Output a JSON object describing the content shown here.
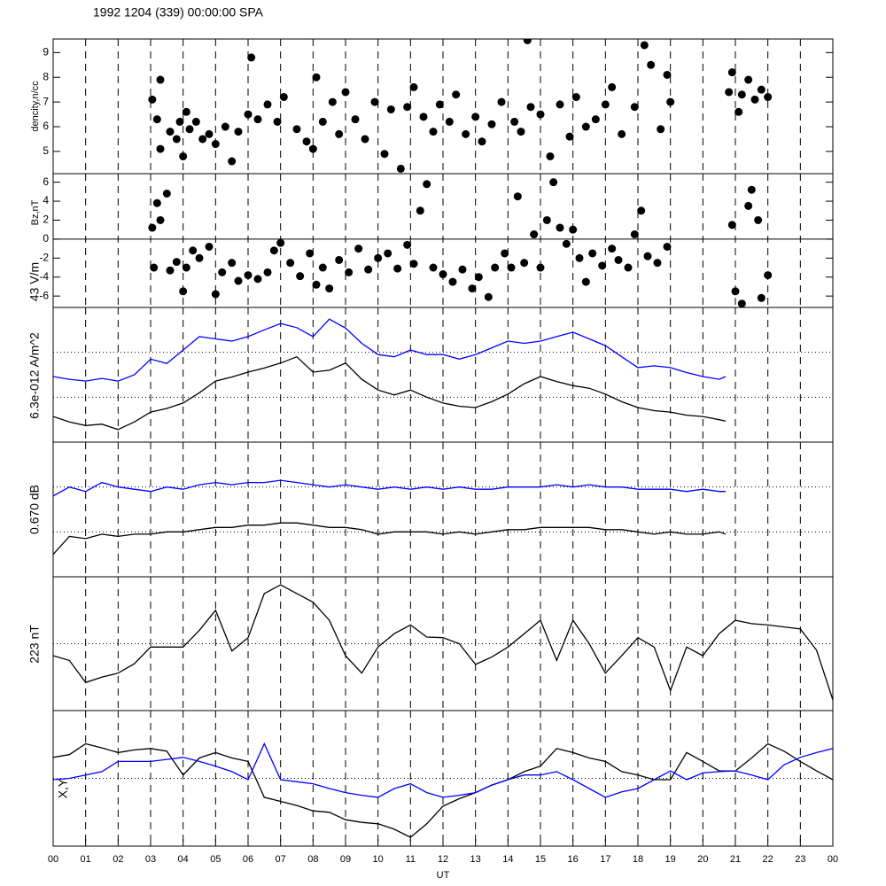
{
  "chart_data": [
    {
      "type": "scatter",
      "title": "1992 1204 (339) 00:00:00 SPA",
      "ylabel": "dencity,n/cc",
      "xlim": [
        0,
        24
      ],
      "ylim": [
        4.1,
        9.55
      ],
      "yticks": [
        5,
        6,
        7,
        8,
        9
      ],
      "tick_labels": true,
      "series": [
        {
          "color": "#000000",
          "x": [
            3.05,
            3.2,
            3.3,
            3.3,
            3.6,
            3.8,
            3.9,
            4.0,
            4.1,
            4.2,
            4.4,
            4.6,
            4.8,
            5.0,
            5.3,
            5.5,
            5.7,
            6.0,
            6.1,
            6.3,
            6.6,
            6.9,
            7.1,
            7.5,
            7.8,
            8.0,
            8.1,
            8.3,
            8.6,
            8.8,
            9.0,
            9.3,
            9.6,
            9.9,
            10.2,
            10.4,
            10.7,
            10.9,
            11.1,
            11.4,
            11.7,
            11.9,
            12.2,
            12.4,
            12.7,
            13.0,
            13.2,
            13.5,
            13.8,
            14.2,
            14.4,
            14.6,
            14.7,
            15.0,
            15.3,
            15.6,
            15.9,
            16.1,
            16.4,
            16.7,
            17.0,
            17.2,
            17.5,
            17.9,
            18.2,
            18.4,
            18.7,
            18.9,
            19.0,
            20.8,
            20.9,
            21.1,
            21.2,
            21.4,
            21.6,
            21.8,
            22.0
          ],
          "values": [
            7.1,
            6.3,
            7.9,
            5.1,
            5.8,
            5.5,
            6.2,
            4.8,
            6.6,
            5.9,
            6.2,
            5.5,
            5.7,
            5.3,
            6.0,
            4.6,
            5.8,
            6.5,
            8.8,
            6.3,
            6.9,
            6.2,
            7.2,
            5.9,
            5.4,
            5.1,
            8.0,
            6.2,
            7.0,
            5.7,
            7.4,
            6.3,
            5.5,
            7.0,
            4.9,
            6.7,
            4.3,
            6.8,
            7.6,
            6.4,
            5.8,
            6.9,
            6.2,
            7.3,
            5.7,
            6.4,
            5.4,
            6.1,
            7.0,
            6.2,
            5.8,
            9.5,
            6.8,
            6.5,
            4.8,
            6.9,
            5.6,
            7.2,
            6.0,
            6.3,
            6.9,
            7.6,
            5.7,
            6.8,
            9.3,
            8.5,
            5.9,
            8.1,
            7.0,
            7.4,
            8.2,
            6.6,
            7.3,
            7.9,
            7.1,
            7.5,
            7.2
          ]
        }
      ]
    },
    {
      "type": "scatter",
      "ylabel": "Bz,nT",
      "ylabel2": "43 V/m",
      "xlim": [
        0,
        24
      ],
      "ylim": [
        -7.2,
        6.9
      ],
      "yticks": [
        -6,
        -4,
        -2,
        0,
        2,
        4,
        6
      ],
      "tick_labels": true,
      "zero_line": true,
      "series": [
        {
          "color": "#000000",
          "x": [
            3.05,
            3.1,
            3.2,
            3.3,
            3.5,
            3.6,
            3.8,
            4.0,
            4.1,
            4.3,
            4.5,
            4.8,
            5.0,
            5.2,
            5.5,
            5.7,
            6.0,
            6.3,
            6.6,
            6.8,
            7.0,
            7.3,
            7.6,
            7.9,
            8.1,
            8.3,
            8.5,
            8.8,
            9.1,
            9.4,
            9.7,
            10.0,
            10.3,
            10.6,
            10.9,
            11.1,
            11.3,
            11.5,
            11.7,
            12.0,
            12.3,
            12.6,
            12.9,
            13.1,
            13.4,
            13.6,
            13.9,
            14.1,
            14.3,
            14.5,
            14.8,
            15.0,
            15.2,
            15.4,
            15.6,
            15.8,
            16.0,
            16.2,
            16.4,
            16.6,
            16.9,
            17.2,
            17.4,
            17.7,
            17.9,
            18.1,
            18.3,
            18.6,
            18.9,
            20.9,
            21.0,
            21.2,
            21.4,
            21.5,
            21.7,
            21.8,
            22.0
          ],
          "values": [
            1.2,
            -3.0,
            3.8,
            2.0,
            4.8,
            -3.3,
            -2.4,
            -5.5,
            -3.0,
            -1.2,
            -2.0,
            -0.8,
            -5.8,
            -3.5,
            -2.5,
            -4.4,
            -3.8,
            -4.2,
            -3.5,
            -1.2,
            -0.4,
            -2.5,
            -3.9,
            -1.5,
            -4.8,
            -3.0,
            -5.2,
            -2.2,
            -3.5,
            -1.0,
            -3.2,
            -2.0,
            -1.5,
            -3.1,
            -0.6,
            -2.6,
            3.0,
            5.8,
            -3.0,
            -3.7,
            -4.5,
            -3.2,
            -5.2,
            -4.0,
            -6.1,
            -3.0,
            -1.5,
            -3.0,
            4.5,
            -2.5,
            0.5,
            -3.0,
            2.0,
            6.0,
            1.2,
            -0.5,
            1.0,
            -2.0,
            -4.5,
            -1.5,
            -2.8,
            -1.0,
            -2.2,
            -3.0,
            0.5,
            3.0,
            -1.8,
            -2.5,
            -0.8,
            1.5,
            -5.5,
            -6.8,
            3.5,
            5.2,
            2.0,
            -6.2,
            -3.8
          ]
        }
      ]
    },
    {
      "type": "line",
      "ylabel": "6.3e-012 A/m^2",
      "xlim": [
        0,
        24
      ],
      "ylim": [
        0,
        3
      ],
      "yticks": [
        1,
        2
      ],
      "tick_labels": false,
      "grid": "dotted",
      "x": [
        0,
        0.5,
        1,
        1.5,
        2,
        2.5,
        3,
        3.5,
        4,
        4.5,
        5,
        5.5,
        6,
        6.5,
        7,
        7.5,
        8,
        8.5,
        9,
        9.5,
        10,
        10.5,
        11,
        11.5,
        12,
        12.5,
        13,
        13.5,
        14,
        14.5,
        15,
        15.5,
        16,
        16.5,
        17,
        17.5,
        18,
        18.5,
        19,
        19.5,
        20,
        20.5,
        20.7
      ],
      "series": [
        {
          "color": "#0000ff",
          "values": [
            1.46,
            1.4,
            1.36,
            1.42,
            1.36,
            1.5,
            1.85,
            1.75,
            2.05,
            2.35,
            2.3,
            2.25,
            2.35,
            2.5,
            2.64,
            2.55,
            2.35,
            2.74,
            2.54,
            2.2,
            1.95,
            1.9,
            2.05,
            1.95,
            1.95,
            1.85,
            1.95,
            2.1,
            2.25,
            2.2,
            2.25,
            2.35,
            2.45,
            2.3,
            2.15,
            1.9,
            1.66,
            1.7,
            1.66,
            1.55,
            1.46,
            1.4,
            1.46
          ]
        },
        {
          "color": "#000000",
          "values": [
            0.57,
            0.45,
            0.37,
            0.4,
            0.28,
            0.45,
            0.67,
            0.75,
            0.87,
            1.1,
            1.36,
            1.45,
            1.56,
            1.65,
            1.76,
            1.9,
            1.56,
            1.6,
            1.76,
            1.4,
            1.16,
            1.05,
            1.16,
            1.0,
            0.87,
            0.8,
            0.77,
            0.9,
            1.07,
            1.3,
            1.46,
            1.35,
            1.26,
            1.2,
            1.07,
            0.9,
            0.77,
            0.7,
            0.67,
            0.6,
            0.57,
            0.5,
            0.47
          ]
        }
      ]
    },
    {
      "type": "line",
      "ylabel": "0.670 dB",
      "xlim": [
        0,
        24
      ],
      "ylim": [
        0,
        3
      ],
      "yticks": [
        1,
        2
      ],
      "tick_labels": false,
      "grid": "dotted",
      "x": [
        0,
        0.5,
        1,
        1.5,
        2,
        2.5,
        3,
        3.5,
        4,
        4.5,
        5,
        5.5,
        6,
        6.5,
        7,
        7.5,
        8,
        8.5,
        9,
        9.5,
        10,
        10.5,
        11,
        11.5,
        12,
        12.5,
        13,
        13.5,
        14,
        14.5,
        15,
        15.5,
        16,
        16.5,
        17,
        17.5,
        18,
        18.5,
        19,
        19.5,
        20,
        20.5,
        20.7
      ],
      "series": [
        {
          "color": "#0000ff",
          "values": [
            1.8,
            2.0,
            1.9,
            2.1,
            2.0,
            1.95,
            1.9,
            2.0,
            1.95,
            2.05,
            2.1,
            2.05,
            2.1,
            2.1,
            2.15,
            2.1,
            2.05,
            2.0,
            2.05,
            2.0,
            1.95,
            2.0,
            1.95,
            2.0,
            1.95,
            2.0,
            1.95,
            1.95,
            2.0,
            2.0,
            2.0,
            2.05,
            2.0,
            2.05,
            2.0,
            2.0,
            1.95,
            1.95,
            1.95,
            1.9,
            1.95,
            1.9,
            1.9
          ]
        },
        {
          "color": "#000000",
          "values": [
            0.5,
            0.9,
            0.85,
            0.95,
            0.9,
            0.95,
            0.95,
            1.0,
            1.0,
            1.05,
            1.1,
            1.1,
            1.15,
            1.15,
            1.2,
            1.2,
            1.15,
            1.1,
            1.1,
            1.05,
            0.95,
            1.0,
            1.0,
            1.0,
            0.95,
            1.0,
            0.95,
            1.0,
            1.05,
            1.05,
            1.1,
            1.1,
            1.1,
            1.1,
            1.05,
            1.05,
            1.0,
            0.95,
            1.0,
            0.95,
            0.95,
            1.0,
            0.95
          ]
        }
      ]
    },
    {
      "type": "line",
      "ylabel": "223 nT",
      "xlim": [
        0,
        24
      ],
      "ylim": [
        0,
        2
      ],
      "yticks": [
        1
      ],
      "tick_labels": false,
      "grid": "dotted",
      "x": [
        0,
        0.5,
        1,
        1.5,
        2,
        2.5,
        3,
        3.5,
        4,
        4.5,
        5,
        5.5,
        6,
        6.5,
        7,
        7.5,
        8,
        8.5,
        9,
        9.5,
        10,
        10.5,
        11,
        11.5,
        12,
        12.5,
        13,
        13.5,
        14,
        14.5,
        15,
        15.5,
        16,
        16.5,
        17,
        17.5,
        18,
        18.5,
        19,
        19.5,
        20,
        20.5,
        21,
        21.5,
        22,
        22.5,
        23,
        23.5,
        24
      ],
      "series": [
        {
          "color": "#000000",
          "values": [
            0.82,
            0.75,
            0.42,
            0.5,
            0.56,
            0.7,
            0.95,
            0.95,
            0.95,
            1.2,
            1.5,
            0.89,
            1.09,
            1.75,
            1.88,
            1.75,
            1.62,
            1.35,
            0.82,
            0.56,
            0.95,
            1.15,
            1.28,
            1.1,
            1.09,
            1.0,
            0.69,
            0.8,
            0.95,
            1.15,
            1.35,
            0.75,
            1.35,
            1.0,
            0.56,
            0.82,
            1.09,
            0.95,
            0.3,
            0.95,
            0.82,
            1.15,
            1.35,
            1.3,
            1.28,
            1.25,
            1.22,
            0.9,
            0.16
          ]
        }
      ]
    },
    {
      "type": "line",
      "ylabel": "X,Y",
      "x_label": "UT",
      "xlim": [
        0,
        24
      ],
      "ylim": [
        0,
        2
      ],
      "yticks": [
        1
      ],
      "tick_labels": false,
      "grid": "dotted",
      "xticks": [
        {
          "value": 0,
          "label": "00"
        },
        {
          "value": 1,
          "label": "01"
        },
        {
          "value": 2,
          "label": "02"
        },
        {
          "value": 3,
          "label": "03"
        },
        {
          "value": 4,
          "label": "04"
        },
        {
          "value": 5,
          "label": "05"
        },
        {
          "value": 6,
          "label": "06"
        },
        {
          "value": 7,
          "label": "07"
        },
        {
          "value": 8,
          "label": "08"
        },
        {
          "value": 9,
          "label": "09"
        },
        10,
        11,
        12,
        13,
        14,
        15,
        16,
        17,
        18,
        19,
        20,
        21,
        22,
        23,
        {
          "value": 24,
          "label": "00"
        }
      ],
      "x": [
        0,
        0.5,
        1,
        1.5,
        2,
        2.5,
        3,
        3.5,
        4,
        4.5,
        5,
        5.5,
        6,
        6.5,
        7,
        7.5,
        8,
        8.5,
        9,
        9.5,
        10,
        10.5,
        11,
        11.5,
        12,
        12.5,
        13,
        13.5,
        14,
        14.5,
        15,
        15.5,
        16,
        16.5,
        17,
        17.5,
        18,
        18.5,
        19,
        19.5,
        20,
        20.5,
        21,
        21.5,
        22,
        22.5,
        23,
        23.5,
        24
      ],
      "series": [
        {
          "color": "#000000",
          "values": [
            1.31,
            1.35,
            1.51,
            1.45,
            1.38,
            1.42,
            1.44,
            1.4,
            1.05,
            1.3,
            1.38,
            1.3,
            1.25,
            0.72,
            0.66,
            0.6,
            0.52,
            0.5,
            0.39,
            0.35,
            0.33,
            0.25,
            0.13,
            0.33,
            0.59,
            0.7,
            0.79,
            0.9,
            0.98,
            1.1,
            1.18,
            1.44,
            1.38,
            1.3,
            1.25,
            1.1,
            1.05,
            0.98,
            0.98,
            1.38,
            1.25,
            1.11,
            1.11,
            1.3,
            1.51,
            1.4,
            1.25,
            1.11,
            0.98
          ]
        },
        {
          "color": "#0000ff",
          "values": [
            0.98,
            1.0,
            1.05,
            1.1,
            1.25,
            1.25,
            1.25,
            1.28,
            1.31,
            1.25,
            1.18,
            1.1,
            0.98,
            1.51,
            0.98,
            0.95,
            0.92,
            0.85,
            0.79,
            0.75,
            0.72,
            0.85,
            0.92,
            0.79,
            0.72,
            0.75,
            0.79,
            0.9,
            0.98,
            1.05,
            1.05,
            1.1,
            0.98,
            0.85,
            0.72,
            0.8,
            0.85,
            0.98,
            1.11,
            0.98,
            1.08,
            1.1,
            1.11,
            1.05,
            0.98,
            1.2,
            1.31,
            1.38,
            1.44
          ]
        }
      ]
    }
  ]
}
